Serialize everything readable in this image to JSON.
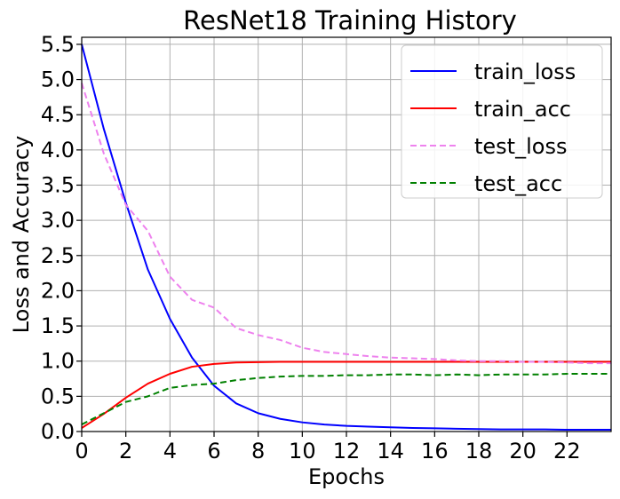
{
  "chart_data": {
    "type": "line",
    "title": "ResNet18 Training History",
    "xlabel": "Epochs",
    "ylabel": "Loss and Accuracy",
    "xlim": [
      0,
      24
    ],
    "ylim": [
      0,
      5.6
    ],
    "xticks": [
      "0",
      "2",
      "4",
      "6",
      "8",
      "10",
      "12",
      "14",
      "16",
      "18",
      "20",
      "22"
    ],
    "yticks": [
      "0.0",
      "0.5",
      "1.0",
      "1.5",
      "2.0",
      "2.5",
      "3.0",
      "3.5",
      "4.0",
      "4.5",
      "5.0",
      "5.5"
    ],
    "grid": true,
    "legend_position": "top-right",
    "x": [
      0,
      1,
      2,
      3,
      4,
      5,
      6,
      7,
      8,
      9,
      10,
      11,
      12,
      13,
      14,
      15,
      16,
      17,
      18,
      19,
      20,
      21,
      22,
      23,
      24
    ],
    "series": [
      {
        "name": "train_loss",
        "color": "#0000ff",
        "style": "solid",
        "values": [
          5.5,
          4.3,
          3.25,
          2.3,
          1.6,
          1.05,
          0.65,
          0.4,
          0.26,
          0.18,
          0.13,
          0.1,
          0.08,
          0.07,
          0.06,
          0.05,
          0.045,
          0.04,
          0.035,
          0.03,
          0.03,
          0.03,
          0.025,
          0.025,
          0.025
        ]
      },
      {
        "name": "train_acc",
        "color": "#ff0000",
        "style": "solid",
        "values": [
          0.05,
          0.25,
          0.48,
          0.68,
          0.82,
          0.92,
          0.96,
          0.98,
          0.985,
          0.99,
          0.99,
          0.99,
          0.99,
          0.99,
          0.99,
          0.99,
          0.99,
          0.99,
          0.99,
          0.99,
          0.99,
          0.99,
          0.99,
          0.99,
          0.99
        ]
      },
      {
        "name": "test_loss",
        "color": "#ee82ee",
        "style": "dashed",
        "values": [
          4.95,
          3.95,
          3.22,
          2.85,
          2.2,
          1.87,
          1.76,
          1.47,
          1.37,
          1.3,
          1.19,
          1.13,
          1.1,
          1.07,
          1.05,
          1.04,
          1.03,
          1.01,
          1.0,
          1.0,
          0.99,
          0.99,
          0.98,
          0.97,
          0.97
        ]
      },
      {
        "name": "test_acc",
        "color": "#008000",
        "style": "dashed",
        "values": [
          0.1,
          0.26,
          0.42,
          0.5,
          0.62,
          0.66,
          0.68,
          0.73,
          0.76,
          0.78,
          0.79,
          0.79,
          0.8,
          0.8,
          0.81,
          0.81,
          0.8,
          0.81,
          0.8,
          0.81,
          0.81,
          0.81,
          0.82,
          0.82,
          0.82
        ]
      }
    ]
  }
}
